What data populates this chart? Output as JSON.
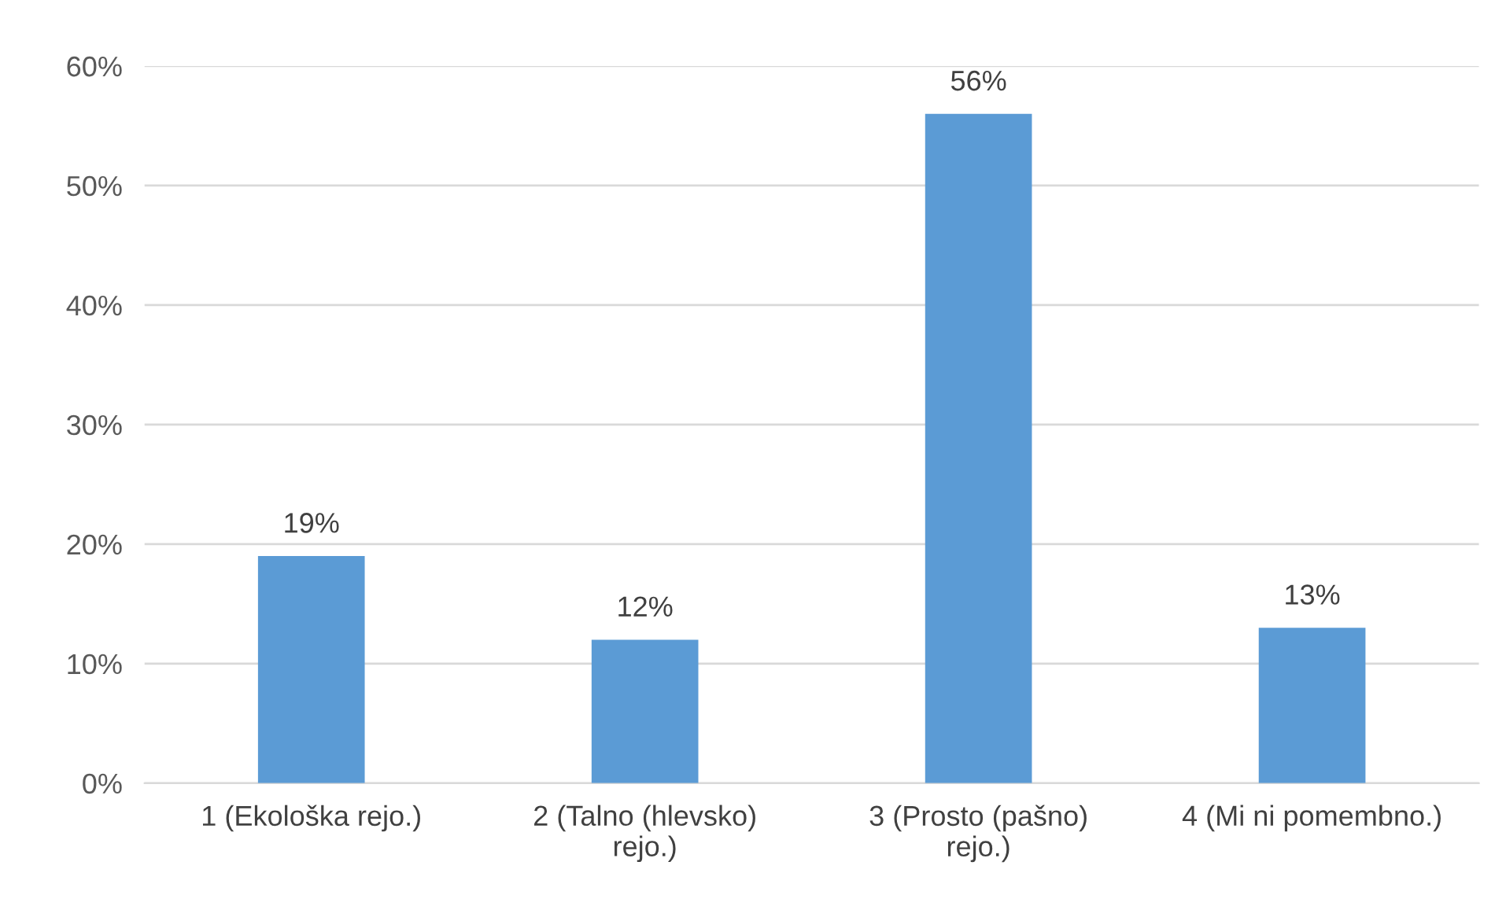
{
  "chart_data": {
    "type": "bar",
    "categories": [
      "1 (Ekološka rejo.)",
      "2 (Talno (hlevsko)\nrejo.)",
      "3 (Prosto (pašno)\nrejo.)",
      "4 (Mi ni pomembno.)"
    ],
    "values": [
      19,
      12,
      56,
      13
    ],
    "value_labels": [
      "19%",
      "12%",
      "56%",
      "13%"
    ],
    "color": "#5b9bd5",
    "ylim": [
      0,
      60
    ],
    "yticks": [
      {
        "value": 0,
        "label": "0%"
      },
      {
        "value": 10,
        "label": "10%"
      },
      {
        "value": 20,
        "label": "20%"
      },
      {
        "value": 30,
        "label": "30%"
      },
      {
        "value": 40,
        "label": "40%"
      },
      {
        "value": 50,
        "label": "50%"
      },
      {
        "value": 60,
        "label": "60%"
      }
    ],
    "grid": "y",
    "legend": false
  }
}
